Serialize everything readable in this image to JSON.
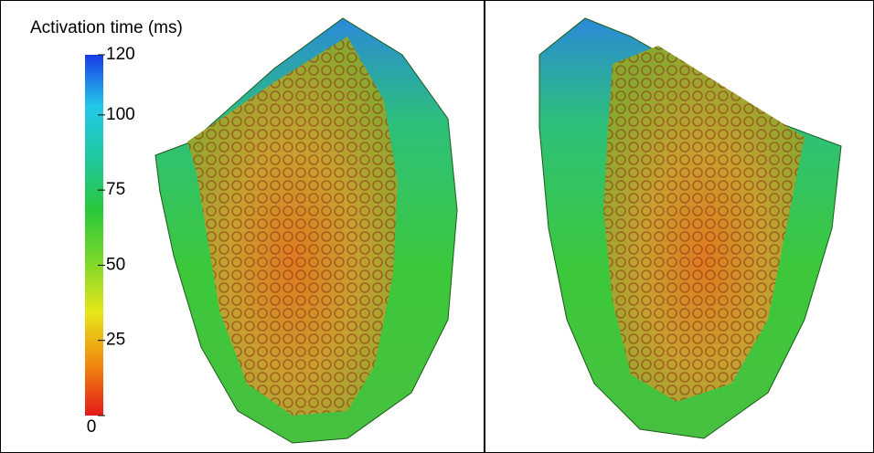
{
  "chart_data": {
    "type": "colorbar",
    "title": "Activation time (ms)",
    "clim": [
      0,
      120
    ],
    "ticks": [
      0,
      25,
      50,
      75,
      100,
      120
    ],
    "colors": [
      "#e41a1a",
      "#f08a10",
      "#e8e61a",
      "#7ad82a",
      "#28c83c",
      "#20c8a0",
      "#22c8e8",
      "#1a3ce8"
    ]
  }
}
